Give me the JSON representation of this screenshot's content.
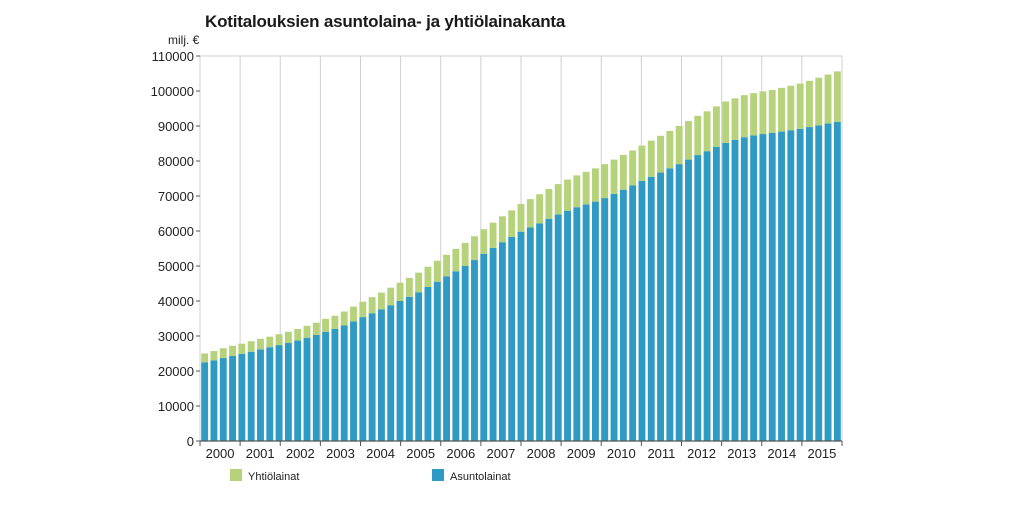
{
  "title": "Kotitalouksien asuntolaina- ja yhtiölainakanta",
  "colors": {
    "asunto": "#2f9bc4",
    "yhtio": "#b6d27a",
    "grid": "#cfcfcf",
    "axis": "#555555"
  },
  "chart_data": {
    "type": "bar",
    "stacked": true,
    "title": "Kotitalouksien asuntolaina- ja yhtiölainakanta",
    "ylabel": "milj. €",
    "xlabel": "",
    "ylim": [
      0,
      110000
    ],
    "yticks": [
      0,
      10000,
      20000,
      30000,
      40000,
      50000,
      60000,
      70000,
      80000,
      90000,
      100000,
      110000
    ],
    "x_tick_labels": [
      "2000",
      "2001",
      "2002",
      "2003",
      "2004",
      "2005",
      "2006",
      "2007",
      "2008",
      "2009",
      "2010",
      "2011",
      "2012",
      "2013",
      "2014",
      "2015"
    ],
    "grid": "vertical lines between years",
    "legend": "bottom",
    "legend_order": [
      "Yhtiölainat",
      "Asuntolainat"
    ],
    "series": [
      {
        "name": "Asuntolainat",
        "color": "#2f9bc4",
        "values": [
          22500,
          23000,
          23700,
          24300,
          24900,
          25500,
          26200,
          26800,
          27400,
          28000,
          28700,
          29500,
          30300,
          31200,
          32000,
          33000,
          34200,
          35400,
          36500,
          37600,
          38800,
          40000,
          41200,
          42500,
          44000,
          45500,
          47000,
          48500,
          50000,
          51700,
          53500,
          55200,
          56800,
          58300,
          59800,
          61000,
          62200,
          63500,
          64700,
          65800,
          66800,
          67600,
          68400,
          69400,
          70600,
          71800,
          73000,
          74300,
          75500,
          76700,
          77900,
          79100,
          80400,
          81700,
          82800,
          84000,
          85200,
          86000,
          86800,
          87300,
          87700,
          88000,
          88400,
          88800,
          89200,
          89700,
          90200,
          90700,
          91200
        ]
      },
      {
        "name": "Yhtiölainat",
        "color": "#b6d27a",
        "values": [
          2500,
          2700,
          2800,
          2900,
          2900,
          3000,
          3000,
          3000,
          3100,
          3200,
          3300,
          3400,
          3500,
          3700,
          3800,
          4000,
          4200,
          4400,
          4600,
          4800,
          5000,
          5200,
          5400,
          5600,
          5800,
          6000,
          6200,
          6400,
          6600,
          6800,
          7000,
          7200,
          7400,
          7600,
          7900,
          8100,
          8300,
          8500,
          8700,
          8900,
          9100,
          9300,
          9500,
          9700,
          9800,
          9900,
          10000,
          10100,
          10300,
          10500,
          10700,
          10900,
          11000,
          11200,
          11400,
          11600,
          11800,
          11900,
          12000,
          12100,
          12200,
          12300,
          12500,
          12700,
          12900,
          13200,
          13600,
          14000,
          14400
        ]
      }
    ]
  }
}
